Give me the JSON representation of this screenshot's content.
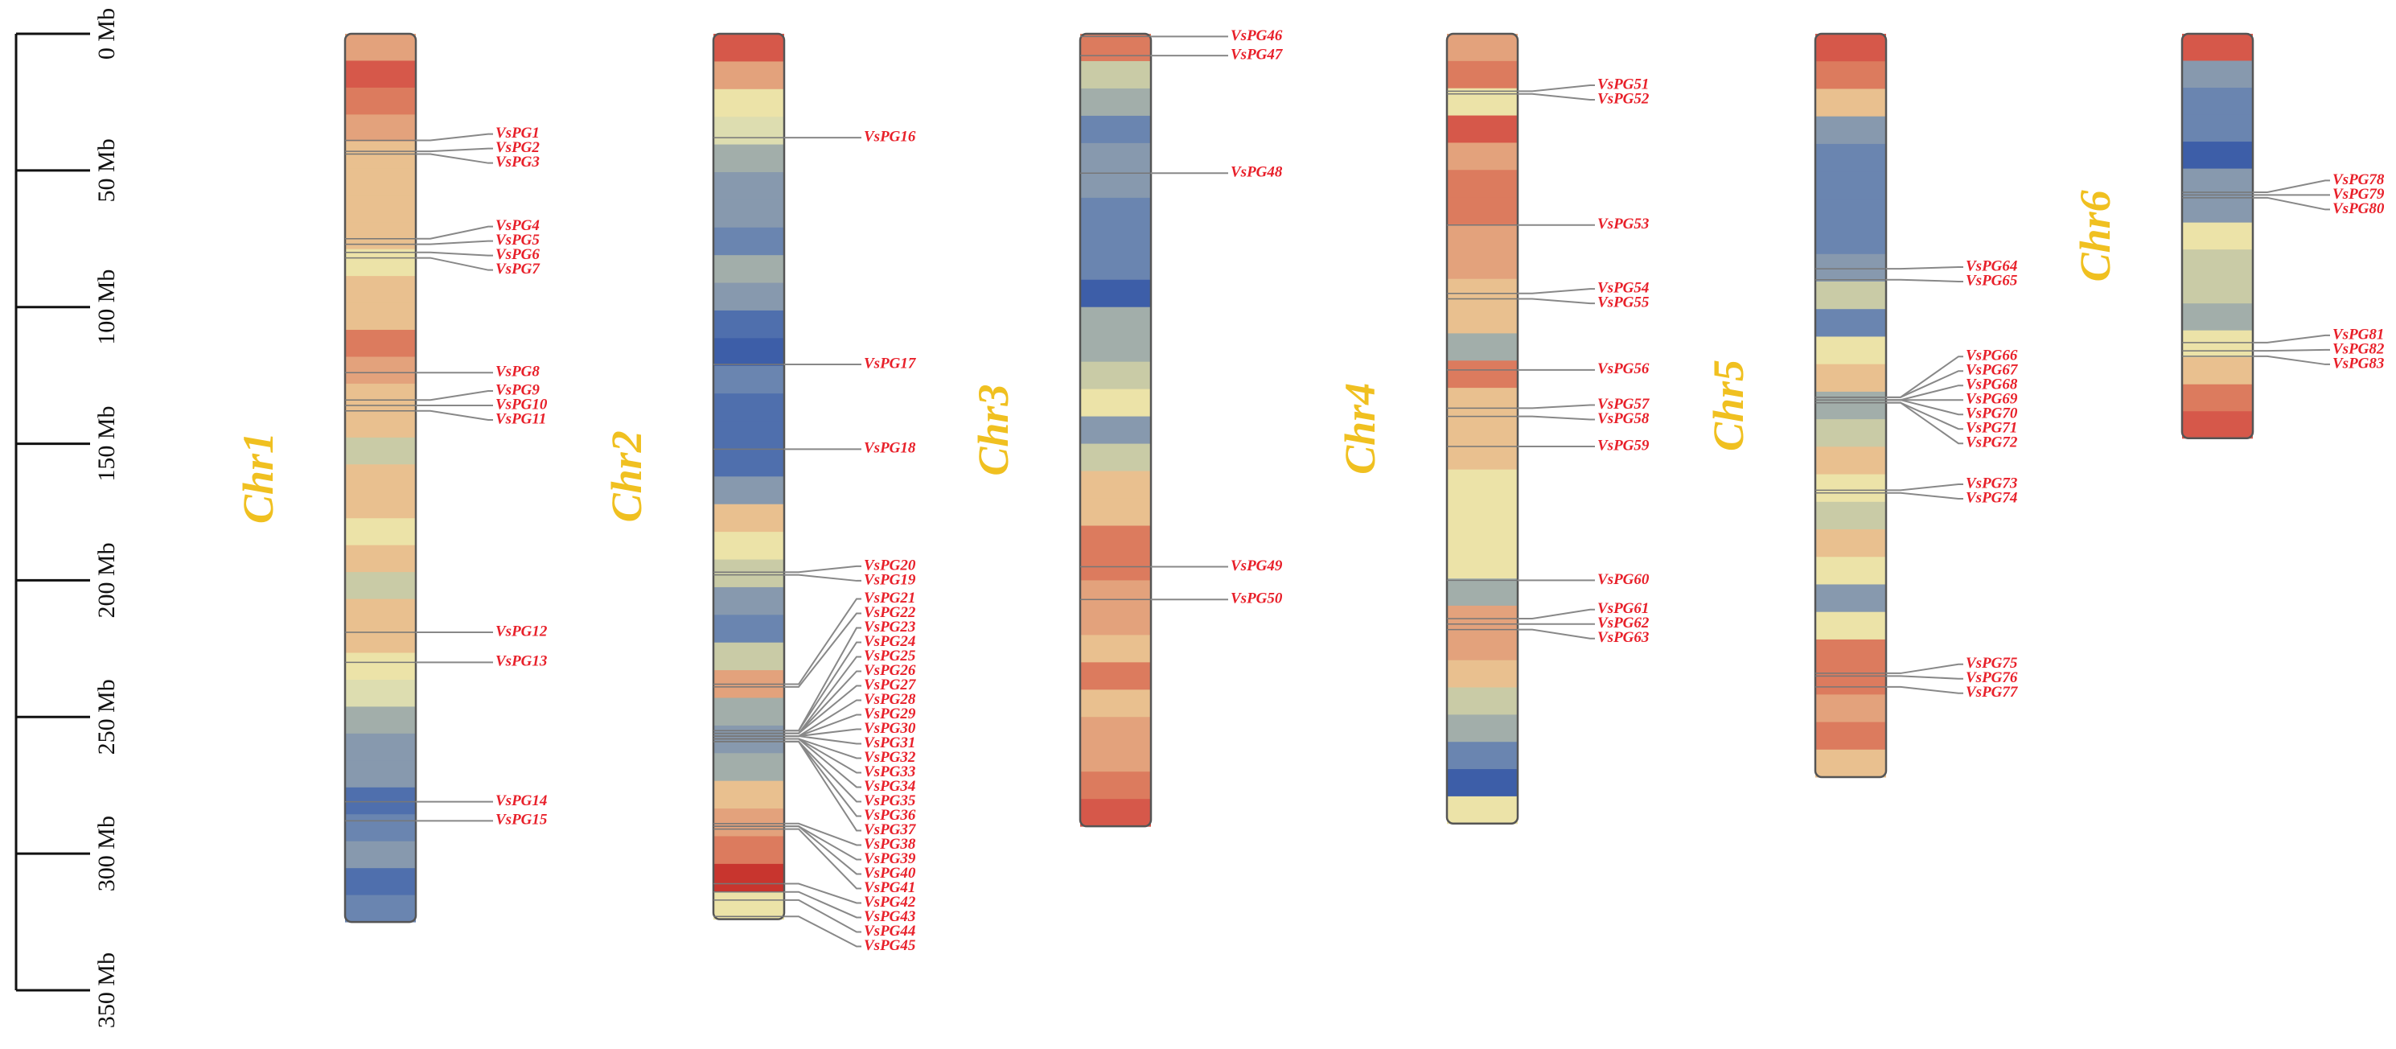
{
  "chart_data": {
    "type": "chromosome-map",
    "ylim": [
      0,
      350
    ],
    "yticks": [
      {
        "value": 0,
        "label": "0 Mb"
      },
      {
        "value": 50,
        "label": "50 Mb"
      },
      {
        "value": 100,
        "label": "100 Mb"
      },
      {
        "value": 150,
        "label": "150 Mb"
      },
      {
        "value": 200,
        "label": "200 Mb"
      },
      {
        "value": 250,
        "label": "250 Mb"
      },
      {
        "value": 300,
        "label": "300 Mb"
      },
      {
        "value": 350,
        "label": "350 Mb"
      }
    ],
    "name_color": "#f0c020",
    "label_color": "#e8202a",
    "chromosomes": [
      {
        "name": "Chr1",
        "length": 325,
        "bands": [
          "#e3a27c",
          "#d6584a",
          "#dc7b5e",
          "#e3a27c",
          "#e9c08f",
          "#e9c08f",
          "#e9c08f",
          "#e9c08f",
          "#ece3a8",
          "#e9c08f",
          "#e9c08f",
          "#dc7b5e",
          "#e3a27c",
          "#e9c08f",
          "#e9c08f",
          "#c9cba6",
          "#e9c08f",
          "#e9c08f",
          "#ece3a8",
          "#e9c08f",
          "#c9cba6",
          "#e9c08f",
          "#e9c08f",
          "#ece3a8",
          "#ddddb0",
          "#a2aeaa",
          "#8799ae",
          "#8799ae",
          "#4f6fad",
          "#6a85b0",
          "#8799ae",
          "#4f6fad",
          "#6a85b0"
        ],
        "genes": [
          {
            "name": "VsPG1",
            "position": 39
          },
          {
            "name": "VsPG2",
            "position": 43
          },
          {
            "name": "VsPG3",
            "position": 44
          },
          {
            "name": "VsPG4",
            "position": 75
          },
          {
            "name": "VsPG5",
            "position": 77
          },
          {
            "name": "VsPG6",
            "position": 80
          },
          {
            "name": "VsPG7",
            "position": 82
          },
          {
            "name": "VsPG8",
            "position": 124
          },
          {
            "name": "VsPG9",
            "position": 134
          },
          {
            "name": "VsPG10",
            "position": 136
          },
          {
            "name": "VsPG11",
            "position": 138
          },
          {
            "name": "VsPG12",
            "position": 219
          },
          {
            "name": "VsPG13",
            "position": 230
          },
          {
            "name": "VsPG14",
            "position": 281
          },
          {
            "name": "VsPG15",
            "position": 288
          }
        ]
      },
      {
        "name": "Chr2",
        "length": 324,
        "bands": [
          "#d6584a",
          "#e3a27c",
          "#ece3a8",
          "#ddddb0",
          "#a2aeaa",
          "#8799ae",
          "#8799ae",
          "#6a85b0",
          "#a2aeaa",
          "#8799ae",
          "#4f6fad",
          "#3d5ea8",
          "#6a85b0",
          "#4f6fad",
          "#4f6fad",
          "#4f6fad",
          "#8799ae",
          "#e9c08f",
          "#ece3a8",
          "#c9cba6",
          "#8799ae",
          "#6a85b0",
          "#c9cba6",
          "#e3a27c",
          "#a2aeaa",
          "#8799ae",
          "#a2aeaa",
          "#e9c08f",
          "#e3a27c",
          "#dc7b5e",
          "#c8352e",
          "#ece3a8"
        ],
        "genes": [
          {
            "name": "VsPG16",
            "position": 38
          },
          {
            "name": "VsPG17",
            "position": 121
          },
          {
            "name": "VsPG18",
            "position": 152
          },
          {
            "name": "VsPG20",
            "position": 197
          },
          {
            "name": "VsPG19",
            "position": 198
          },
          {
            "name": "VsPG21",
            "position": 238
          },
          {
            "name": "VsPG22",
            "position": 239
          },
          {
            "name": "VsPG23",
            "position": 255
          },
          {
            "name": "VsPG24",
            "position": 255
          },
          {
            "name": "VsPG25",
            "position": 256
          },
          {
            "name": "VsPG26",
            "position": 256
          },
          {
            "name": "VsPG27",
            "position": 256
          },
          {
            "name": "VsPG28",
            "position": 257
          },
          {
            "name": "VsPG29",
            "position": 257
          },
          {
            "name": "VsPG30",
            "position": 257
          },
          {
            "name": "VsPG31",
            "position": 257
          },
          {
            "name": "VsPG32",
            "position": 258
          },
          {
            "name": "VsPG33",
            "position": 258
          },
          {
            "name": "VsPG34",
            "position": 258
          },
          {
            "name": "VsPG35",
            "position": 259
          },
          {
            "name": "VsPG36",
            "position": 259
          },
          {
            "name": "VsPG37",
            "position": 259
          },
          {
            "name": "VsPG38",
            "position": 289
          },
          {
            "name": "VsPG39",
            "position": 290
          },
          {
            "name": "VsPG40",
            "position": 290
          },
          {
            "name": "VsPG41",
            "position": 291
          },
          {
            "name": "VsPG42",
            "position": 311
          },
          {
            "name": "VsPG43",
            "position": 314
          },
          {
            "name": "VsPG44",
            "position": 317
          },
          {
            "name": "VsPG45",
            "position": 323
          }
        ]
      },
      {
        "name": "Chr3",
        "length": 290,
        "bands": [
          "#dc7b5e",
          "#c9cba6",
          "#a2aeaa",
          "#6a85b0",
          "#8799ae",
          "#8799ae",
          "#6a85b0",
          "#6a85b0",
          "#6a85b0",
          "#3d5ea8",
          "#a2aeaa",
          "#a2aeaa",
          "#c9cba6",
          "#ece3a8",
          "#8799ae",
          "#c9cba6",
          "#e9c08f",
          "#e9c08f",
          "#dc7b5e",
          "#dc7b5e",
          "#e3a27c",
          "#e3a27c",
          "#e9c08f",
          "#dc7b5e",
          "#e9c08f",
          "#e3a27c",
          "#e3a27c",
          "#dc7b5e",
          "#d6584a"
        ],
        "genes": [
          {
            "name": "VsPG46",
            "position": 1
          },
          {
            "name": "VsPG47",
            "position": 8
          },
          {
            "name": "VsPG48",
            "position": 51
          },
          {
            "name": "VsPG49",
            "position": 195
          },
          {
            "name": "VsPG50",
            "position": 207
          }
        ]
      },
      {
        "name": "Chr4",
        "length": 289,
        "bands": [
          "#e3a27c",
          "#dc7b5e",
          "#ece3a8",
          "#d6584a",
          "#e3a27c",
          "#dc7b5e",
          "#dc7b5e",
          "#e3a27c",
          "#e3a27c",
          "#e9c08f",
          "#e9c08f",
          "#a2aeaa",
          "#dc7b5e",
          "#e9c08f",
          "#e9c08f",
          "#e9c08f",
          "#ece3a8",
          "#ece3a8",
          "#ece3a8",
          "#ece3a8",
          "#a2aeaa",
          "#e3a27c",
          "#e3a27c",
          "#e9c08f",
          "#c9cba6",
          "#a2aeaa",
          "#6a85b0",
          "#3d5ea8",
          "#ece3a8"
        ],
        "genes": [
          {
            "name": "VsPG51",
            "position": 21
          },
          {
            "name": "VsPG52",
            "position": 22
          },
          {
            "name": "VsPG53",
            "position": 70
          },
          {
            "name": "VsPG54",
            "position": 95
          },
          {
            "name": "VsPG55",
            "position": 97
          },
          {
            "name": "VsPG56",
            "position": 123
          },
          {
            "name": "VsPG57",
            "position": 137
          },
          {
            "name": "VsPG58",
            "position": 140
          },
          {
            "name": "VsPG59",
            "position": 151
          },
          {
            "name": "VsPG60",
            "position": 200
          },
          {
            "name": "VsPG61",
            "position": 214
          },
          {
            "name": "VsPG62",
            "position": 216
          },
          {
            "name": "VsPG63",
            "position": 218
          }
        ]
      },
      {
        "name": "Chr5",
        "length": 272,
        "bands": [
          "#d6584a",
          "#dc7b5e",
          "#e9c08f",
          "#8799ae",
          "#6a85b0",
          "#6a85b0",
          "#6a85b0",
          "#6a85b0",
          "#8799ae",
          "#c9cba6",
          "#6a85b0",
          "#ece3a8",
          "#e9c08f",
          "#a2aeaa",
          "#c9cba6",
          "#e9c08f",
          "#ece3a8",
          "#c9cba6",
          "#e9c08f",
          "#ece3a8",
          "#8799ae",
          "#ece3a8",
          "#dc7b5e",
          "#dc7b5e",
          "#e3a27c",
          "#dc7b5e",
          "#e9c08f"
        ],
        "genes": [
          {
            "name": "VsPG64",
            "position": 86
          },
          {
            "name": "VsPG65",
            "position": 90
          },
          {
            "name": "VsPG66",
            "position": 133
          },
          {
            "name": "VsPG67",
            "position": 133
          },
          {
            "name": "VsPG68",
            "position": 134
          },
          {
            "name": "VsPG69",
            "position": 134
          },
          {
            "name": "VsPG70",
            "position": 134
          },
          {
            "name": "VsPG71",
            "position": 135
          },
          {
            "name": "VsPG72",
            "position": 135
          },
          {
            "name": "VsPG73",
            "position": 167
          },
          {
            "name": "VsPG74",
            "position": 168
          },
          {
            "name": "VsPG75",
            "position": 234
          },
          {
            "name": "VsPG76",
            "position": 235
          },
          {
            "name": "VsPG77",
            "position": 239
          }
        ]
      },
      {
        "name": "Chr6",
        "length": 148,
        "bands": [
          "#d6584a",
          "#8799ae",
          "#6a85b0",
          "#6a85b0",
          "#3d5ea8",
          "#8799ae",
          "#8799ae",
          "#ece3a8",
          "#c9cba6",
          "#c9cba6",
          "#a2aeaa",
          "#ece3a8",
          "#e9c08f",
          "#dc7b5e",
          "#d6584a"
        ],
        "genes": [
          {
            "name": "VsPG78",
            "position": 58
          },
          {
            "name": "VsPG79",
            "position": 59
          },
          {
            "name": "VsPG80",
            "position": 60
          },
          {
            "name": "VsPG81",
            "position": 113
          },
          {
            "name": "VsPG82",
            "position": 116
          },
          {
            "name": "VsPG83",
            "position": 118
          }
        ]
      }
    ]
  }
}
